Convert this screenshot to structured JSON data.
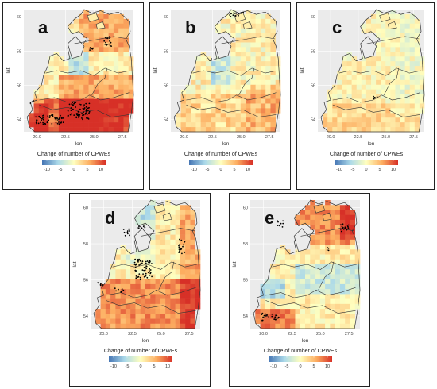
{
  "figure": {
    "axes": {
      "x_label": "lon",
      "y_label": "lat",
      "x_ticks": [
        "20.0",
        "22.5",
        "25.0",
        "27.5"
      ],
      "y_ticks": [
        "54",
        "56",
        "58",
        "60"
      ]
    },
    "legend": {
      "title": "Change of number of CPWEs",
      "ticks": [
        "-10",
        "-5",
        "0",
        "5",
        "10"
      ],
      "colors": {
        "low": "#4575b4",
        "mid_low": "#abd9e9",
        "neutral": "#ffffbf",
        "mid_high": "#fdae61",
        "high": "#d73027"
      }
    },
    "panels": [
      {
        "letter": "a",
        "summary": "strong increases in south and south-east, many significant cells"
      },
      {
        "letter": "b",
        "summary": "weak mixed changes, few significant cells"
      },
      {
        "letter": "c",
        "summary": "weak changes, very few significant cells"
      },
      {
        "letter": "d",
        "summary": "increases in south and east, significant cells in centre and north-east"
      },
      {
        "letter": "e",
        "summary": "increases in north and south-west, decreases in centre"
      }
    ]
  }
}
